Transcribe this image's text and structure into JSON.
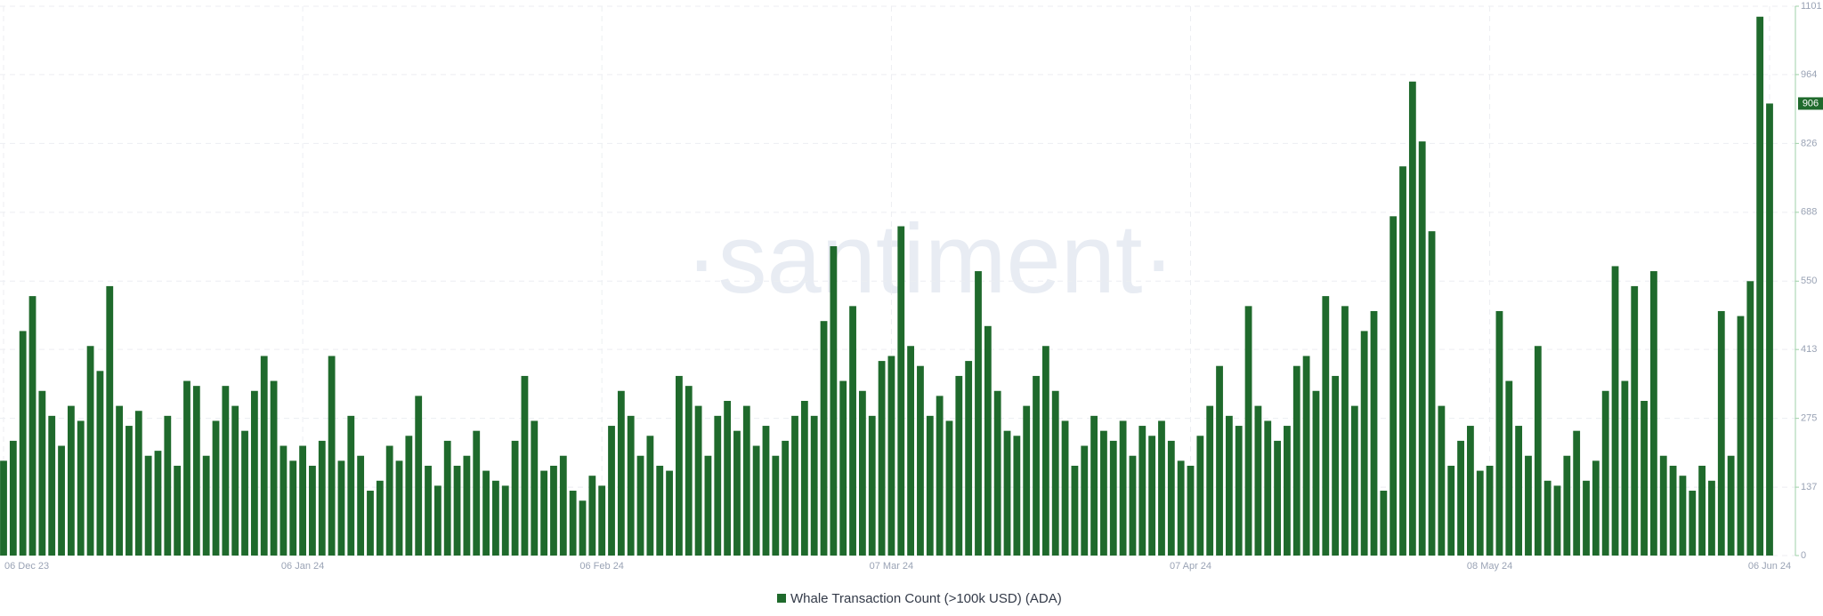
{
  "chart_data": {
    "type": "bar",
    "watermark": "·santiment·",
    "categories": [
      "06 Dec 23",
      null,
      null,
      null,
      null,
      null,
      null,
      null,
      null,
      null,
      null,
      null,
      null,
      null,
      null,
      null,
      null,
      null,
      null,
      null,
      null,
      null,
      null,
      null,
      null,
      null,
      null,
      null,
      null,
      null,
      null,
      "06 Jan 24",
      null,
      null,
      null,
      null,
      null,
      null,
      null,
      null,
      null,
      null,
      null,
      null,
      null,
      null,
      null,
      null,
      null,
      null,
      null,
      null,
      null,
      null,
      null,
      null,
      null,
      null,
      null,
      null,
      null,
      null,
      "06 Feb 24",
      null,
      null,
      null,
      null,
      null,
      null,
      null,
      null,
      null,
      null,
      null,
      null,
      null,
      null,
      null,
      null,
      null,
      null,
      null,
      null,
      null,
      null,
      null,
      null,
      null,
      null,
      null,
      null,
      null,
      "07 Mar 24",
      null,
      null,
      null,
      null,
      null,
      null,
      null,
      null,
      null,
      null,
      null,
      null,
      null,
      null,
      null,
      null,
      null,
      null,
      null,
      null,
      null,
      null,
      null,
      null,
      null,
      null,
      null,
      null,
      null,
      null,
      "07 Apr 24",
      null,
      null,
      null,
      null,
      null,
      null,
      null,
      null,
      null,
      null,
      null,
      null,
      null,
      null,
      null,
      null,
      null,
      null,
      null,
      null,
      null,
      null,
      null,
      null,
      null,
      null,
      null,
      null,
      null,
      null,
      "08 May 24",
      null,
      null,
      null,
      null,
      null,
      null,
      null,
      null,
      null,
      null,
      null,
      null,
      null,
      null,
      null,
      null,
      null,
      null,
      null,
      null,
      null,
      null,
      null,
      null,
      null,
      null,
      null,
      null,
      "06 Jun 24"
    ],
    "series": [
      {
        "name": "Whale Transaction Count (>100k USD) (ADA)",
        "color": "#1f6a2c",
        "values": [
          190,
          230,
          450,
          520,
          330,
          280,
          220,
          300,
          270,
          420,
          370,
          540,
          300,
          260,
          290,
          200,
          210,
          280,
          180,
          350,
          340,
          200,
          270,
          340,
          300,
          250,
          330,
          400,
          350,
          220,
          190,
          220,
          180,
          230,
          400,
          190,
          280,
          200,
          130,
          150,
          220,
          190,
          240,
          320,
          180,
          140,
          230,
          180,
          200,
          250,
          170,
          150,
          140,
          230,
          360,
          270,
          170,
          180,
          200,
          130,
          110,
          160,
          140,
          260,
          330,
          280,
          200,
          240,
          180,
          170,
          360,
          340,
          300,
          200,
          280,
          310,
          250,
          300,
          220,
          260,
          200,
          230,
          280,
          310,
          280,
          470,
          620,
          350,
          500,
          330,
          280,
          390,
          400,
          660,
          420,
          380,
          280,
          320,
          270,
          360,
          390,
          570,
          460,
          330,
          250,
          240,
          300,
          360,
          420,
          330,
          270,
          180,
          220,
          280,
          250,
          230,
          270,
          200,
          260,
          240,
          270,
          230,
          190,
          180,
          240,
          300,
          380,
          280,
          260,
          500,
          300,
          270,
          230,
          260,
          380,
          400,
          330,
          520,
          360,
          500,
          300,
          450,
          490,
          130,
          680,
          780,
          950,
          830,
          650,
          300,
          180,
          230,
          260,
          170,
          180,
          490,
          350,
          260,
          200,
          420,
          150,
          140,
          200,
          250,
          150,
          190,
          330,
          580,
          350,
          540,
          310,
          570,
          200,
          180,
          160,
          130,
          180,
          150,
          490,
          200,
          480,
          550,
          1080,
          906
        ]
      }
    ],
    "ylim": [
      0,
      1101
    ],
    "yticks": [
      0,
      137,
      275,
      413,
      550,
      688,
      826,
      964,
      1101
    ],
    "grid": true
  }
}
